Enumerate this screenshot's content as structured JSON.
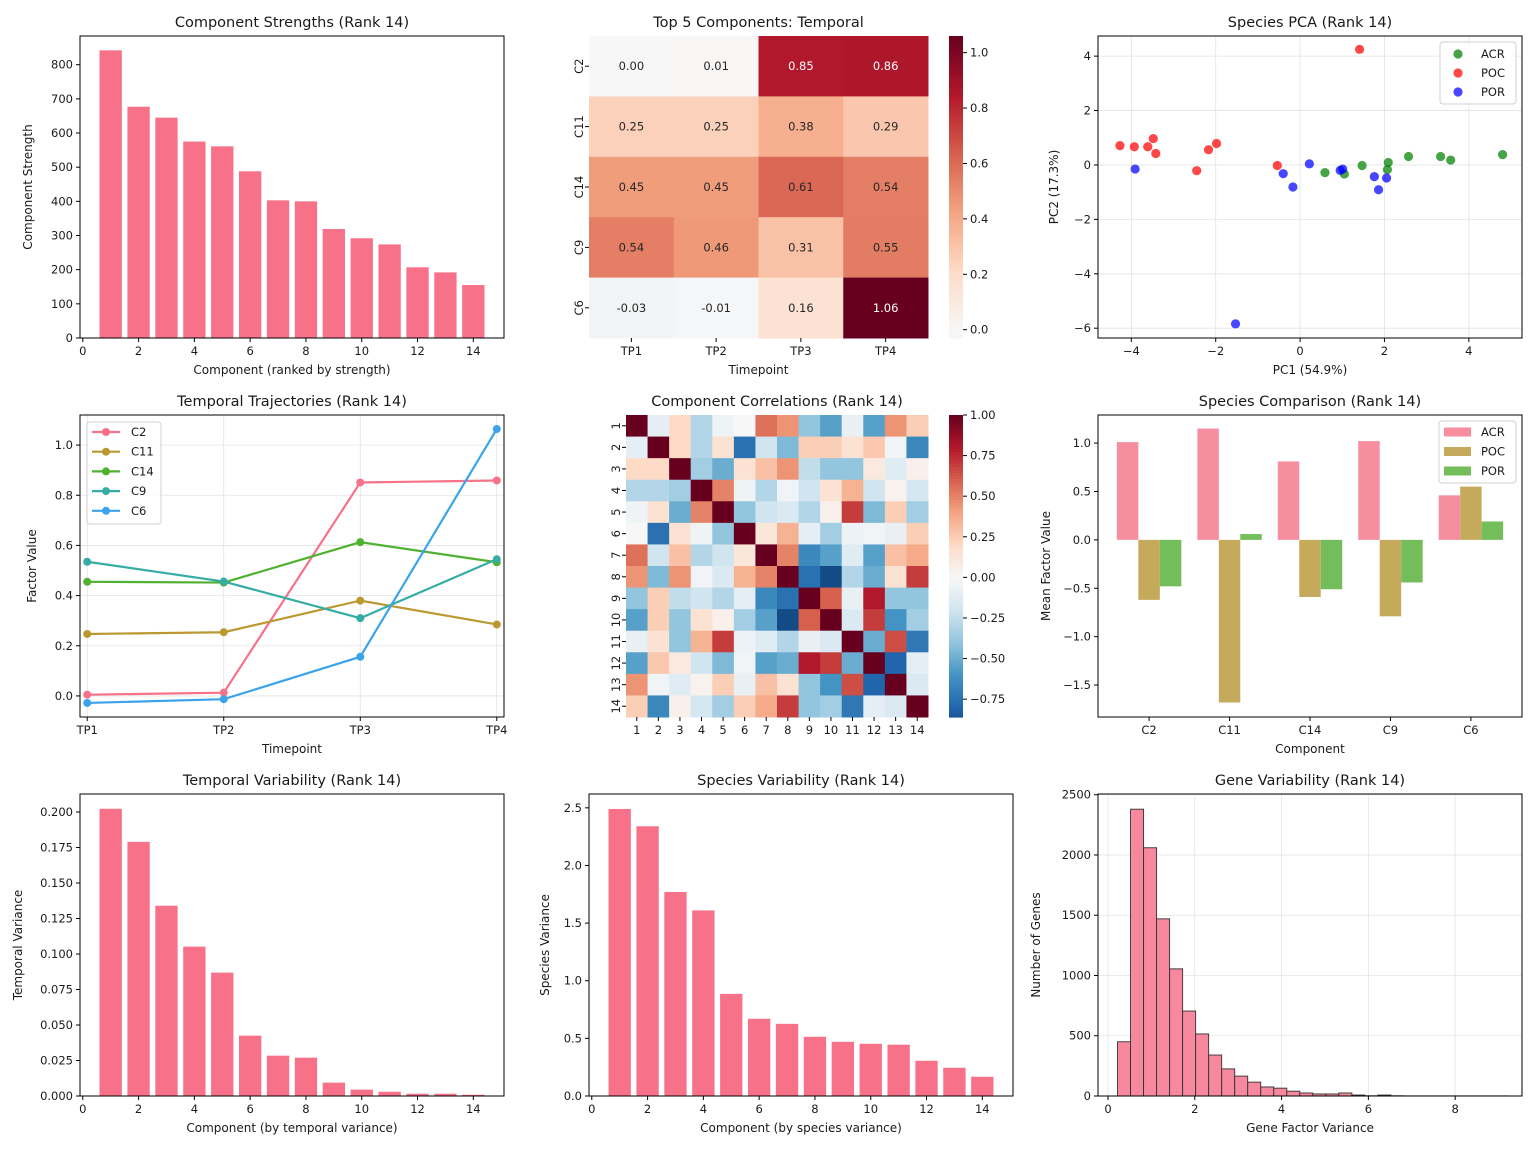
{
  "chart_data": [
    {
      "id": "strengths",
      "type": "bar",
      "title": "Component Strengths (Rank 14)",
      "xlabel": "Component (ranked by strength)",
      "ylabel": "Component Strength",
      "x": [
        1,
        2,
        3,
        4,
        5,
        6,
        7,
        8,
        9,
        10,
        11,
        12,
        13,
        14
      ],
      "values": [
        842,
        677,
        645,
        575,
        561,
        488,
        403,
        400,
        319,
        292,
        274,
        207,
        192,
        155
      ],
      "xlim": [
        -0.1,
        15.1
      ],
      "ylim": [
        0,
        884
      ],
      "xticks": [
        0,
        2,
        4,
        6,
        8,
        10,
        12,
        14
      ],
      "yticks": [
        0,
        100,
        200,
        300,
        400,
        500,
        600,
        700,
        800
      ],
      "color": "#f77189",
      "grid": false
    },
    {
      "id": "temporal-heatmap",
      "type": "heatmap",
      "title": "Top 5 Components: Temporal",
      "xlabel": "Timepoint",
      "ylabel": "",
      "columns": [
        "TP1",
        "TP2",
        "TP3",
        "TP4"
      ],
      "rows": [
        "C2",
        "C11",
        "C14",
        "C9",
        "C6"
      ],
      "values": [
        [
          0.0,
          0.01,
          0.85,
          0.86
        ],
        [
          0.25,
          0.25,
          0.38,
          0.29
        ],
        [
          0.45,
          0.45,
          0.61,
          0.54
        ],
        [
          0.54,
          0.46,
          0.31,
          0.55
        ],
        [
          -0.03,
          -0.01,
          0.16,
          1.06
        ]
      ],
      "value_labels": [
        [
          "0.00",
          "0.01",
          "0.85",
          "0.86"
        ],
        [
          "0.25",
          "0.25",
          "0.38",
          "0.29"
        ],
        [
          "0.45",
          "0.45",
          "0.61",
          "0.54"
        ],
        [
          "0.54",
          "0.46",
          "0.31",
          "0.55"
        ],
        [
          "-0.03",
          "-0.01",
          "0.16",
          "1.06"
        ]
      ],
      "colormap": "RdBu_r",
      "center": 0,
      "vmin": -0.03,
      "vmax": 1.06,
      "colorbar_ticks": [
        0.0,
        0.2,
        0.4,
        0.6,
        0.8,
        1.0
      ],
      "colorbar_tick_labels": [
        "0.0",
        "0.2",
        "0.4",
        "0.6",
        "0.8",
        "1.0"
      ]
    },
    {
      "id": "species-pca",
      "type": "scatter",
      "title": "Species PCA (Rank 14)",
      "xlabel": "PC1 (54.9%)",
      "ylabel": "PC2 (17.3%)",
      "xlim": [
        -4.79,
        5.26
      ],
      "ylim": [
        -6.36,
        4.74
      ],
      "xticks": [
        -4,
        -2,
        0,
        2,
        4
      ],
      "xtick_labels": [
        "−4",
        "−2",
        "0",
        "2",
        "4"
      ],
      "yticks": [
        -6,
        -4,
        -2,
        0,
        2,
        4
      ],
      "ytick_labels": [
        "−6",
        "−4",
        "−2",
        "0",
        "2",
        "4"
      ],
      "grid": true,
      "legend_position": "top-right",
      "series": [
        {
          "name": "ACR",
          "color": "#008000",
          "points": [
            [
              0.59,
              -0.28
            ],
            [
              1.05,
              -0.33
            ],
            [
              1.47,
              -0.02
            ],
            [
              2.07,
              -0.17
            ],
            [
              2.09,
              0.09
            ],
            [
              2.57,
              0.31
            ],
            [
              3.33,
              0.31
            ],
            [
              3.57,
              0.18
            ],
            [
              4.8,
              0.38
            ]
          ]
        },
        {
          "name": "POC",
          "color": "#ff0000",
          "points": [
            [
              -4.27,
              0.71
            ],
            [
              -3.93,
              0.67
            ],
            [
              -3.61,
              0.67
            ],
            [
              -3.48,
              0.97
            ],
            [
              -3.42,
              0.42
            ],
            [
              -2.45,
              -0.21
            ],
            [
              -2.17,
              0.56
            ],
            [
              -1.98,
              0.79
            ],
            [
              -0.54,
              -0.02
            ],
            [
              1.41,
              4.25
            ]
          ]
        },
        {
          "name": "POR",
          "color": "#0000ff",
          "points": [
            [
              -3.91,
              -0.15
            ],
            [
              -1.53,
              -5.84
            ],
            [
              -0.4,
              -0.32
            ],
            [
              -0.17,
              -0.81
            ],
            [
              0.22,
              0.04
            ],
            [
              0.95,
              -0.2
            ],
            [
              1.01,
              -0.15
            ],
            [
              1.76,
              -0.43
            ],
            [
              1.86,
              -0.91
            ],
            [
              2.05,
              -0.48
            ]
          ]
        }
      ]
    },
    {
      "id": "temporal-trajectories",
      "type": "line",
      "title": "Temporal Trajectories (Rank 14)",
      "xlabel": "Timepoint",
      "ylabel": "Factor Value",
      "categories": [
        "TP1",
        "TP2",
        "TP3",
        "TP4"
      ],
      "ylim": [
        -0.084,
        1.12
      ],
      "yticks": [
        0.0,
        0.2,
        0.4,
        0.6,
        0.8,
        1.0
      ],
      "ytick_labels": [
        "0.0",
        "0.2",
        "0.4",
        "0.6",
        "0.8",
        "1.0"
      ],
      "grid": true,
      "legend_position": "top-left",
      "series": [
        {
          "name": "C2",
          "color": "#f77189",
          "values": [
            0.005,
            0.013,
            0.851,
            0.859
          ]
        },
        {
          "name": "C11",
          "color": "#bb9832",
          "values": [
            0.247,
            0.254,
            0.38,
            0.285
          ]
        },
        {
          "name": "C14",
          "color": "#50b131",
          "values": [
            0.455,
            0.452,
            0.613,
            0.533
          ]
        },
        {
          "name": "C9",
          "color": "#36ada4",
          "values": [
            0.535,
            0.456,
            0.31,
            0.545
          ]
        },
        {
          "name": "C6",
          "color": "#3ba3ec",
          "values": [
            -0.028,
            -0.013,
            0.156,
            1.064
          ]
        }
      ]
    },
    {
      "id": "component-correlations",
      "type": "heatmap",
      "title": "Component Correlations (Rank 14)",
      "xlabel": "",
      "ylabel": "",
      "columns": [
        "1",
        "2",
        "3",
        "4",
        "5",
        "6",
        "7",
        "8",
        "9",
        "10",
        "11",
        "12",
        "13",
        "14"
      ],
      "rows": [
        "1",
        "2",
        "3",
        "4",
        "5",
        "6",
        "7",
        "8",
        "9",
        "10",
        "11",
        "12",
        "13",
        "14"
      ],
      "values": [
        [
          1,
          -0.1,
          0.2,
          -0.3,
          -0.05,
          0.0,
          0.55,
          0.45,
          -0.4,
          -0.55,
          -0.08,
          -0.55,
          0.45,
          0.25
        ],
        [
          -0.1,
          1,
          0.2,
          -0.3,
          0.15,
          -0.75,
          -0.2,
          -0.45,
          0.25,
          0.25,
          0.15,
          0.27,
          -0.03,
          -0.65
        ],
        [
          0.2,
          0.2,
          1,
          -0.35,
          -0.5,
          0.15,
          0.3,
          0.45,
          -0.25,
          -0.4,
          -0.4,
          0.1,
          -0.12,
          0.05
        ],
        [
          -0.3,
          -0.3,
          -0.35,
          1,
          0.5,
          -0.05,
          -0.3,
          -0.03,
          -0.2,
          0.15,
          0.35,
          -0.2,
          0.04,
          -0.18
        ],
        [
          -0.05,
          0.15,
          -0.5,
          0.5,
          1,
          -0.4,
          -0.2,
          -0.15,
          -0.3,
          0.05,
          0.7,
          -0.45,
          0.25,
          -0.35
        ],
        [
          0.0,
          -0.75,
          0.15,
          -0.05,
          -0.4,
          1,
          0.12,
          0.35,
          -0.1,
          -0.35,
          -0.06,
          -0.03,
          -0.08,
          0.25
        ],
        [
          0.55,
          -0.2,
          0.3,
          -0.3,
          -0.2,
          0.12,
          1,
          0.5,
          -0.65,
          -0.55,
          -0.12,
          -0.55,
          0.3,
          0.38
        ],
        [
          0.45,
          -0.45,
          0.45,
          -0.03,
          -0.15,
          0.35,
          0.5,
          1,
          -0.75,
          -0.9,
          -0.3,
          -0.5,
          0.15,
          0.7
        ],
        [
          -0.4,
          0.25,
          -0.25,
          -0.2,
          -0.3,
          -0.1,
          -0.65,
          -0.75,
          1,
          0.6,
          -0.08,
          0.8,
          -0.4,
          -0.4
        ],
        [
          -0.55,
          0.25,
          -0.4,
          0.15,
          0.05,
          -0.35,
          -0.55,
          -0.9,
          0.6,
          1,
          -0.15,
          0.7,
          -0.6,
          -0.35
        ],
        [
          -0.08,
          0.15,
          -0.4,
          0.35,
          0.7,
          -0.06,
          -0.12,
          -0.3,
          -0.08,
          -0.15,
          1,
          -0.5,
          0.65,
          -0.72
        ],
        [
          -0.55,
          0.27,
          0.1,
          -0.2,
          -0.45,
          -0.03,
          -0.55,
          -0.5,
          0.8,
          0.7,
          -0.5,
          1,
          -0.8,
          -0.1
        ],
        [
          0.45,
          -0.03,
          -0.12,
          0.04,
          0.25,
          -0.08,
          0.3,
          0.15,
          -0.4,
          -0.6,
          0.65,
          -0.8,
          1,
          -0.15
        ],
        [
          0.25,
          -0.65,
          0.05,
          -0.18,
          -0.35,
          0.25,
          0.38,
          0.7,
          -0.4,
          -0.35,
          -0.72,
          -0.1,
          -0.15,
          1
        ]
      ],
      "colormap": "RdBu_r",
      "center": 0,
      "vmin": -0.86,
      "vmax": 1.0,
      "colorbar_ticks": [
        -0.75,
        -0.5,
        -0.25,
        0.0,
        0.25,
        0.5,
        0.75,
        1.0
      ],
      "colorbar_tick_labels": [
        "−0.75",
        "−0.50",
        "−0.25",
        "0.00",
        "0.25",
        "0.50",
        "0.75",
        "1.00"
      ]
    },
    {
      "id": "species-comparison",
      "type": "bar",
      "title": "Species Comparison (Rank 14)",
      "xlabel": "Component",
      "ylabel": "Mean Factor Value",
      "categories": [
        "C2",
        "C11",
        "C14",
        "C9",
        "C6"
      ],
      "ylim": [
        -1.83,
        1.29
      ],
      "yticks": [
        -1.5,
        -1.0,
        -0.5,
        0.0,
        0.5,
        1.0
      ],
      "ytick_labels": [
        "−1.5",
        "−1.0",
        "−0.5",
        "0.0",
        "0.5",
        "1.0"
      ],
      "legend_position": "top-right",
      "series": [
        {
          "name": "ACR",
          "color": "#f68ea0",
          "values": [
            1.01,
            1.15,
            0.81,
            1.02,
            0.46
          ]
        },
        {
          "name": "POC",
          "color": "#c6aa5c",
          "values": [
            -0.62,
            -1.68,
            -0.59,
            -0.79,
            0.55
          ]
        },
        {
          "name": "POR",
          "color": "#73be5a",
          "values": [
            -0.48,
            0.06,
            -0.51,
            -0.44,
            0.19
          ]
        }
      ]
    },
    {
      "id": "temporal-variability",
      "type": "bar",
      "title": "Temporal Variability (Rank 14)",
      "xlabel": "Component (by temporal variance)",
      "ylabel": "Temporal Variance",
      "x": [
        1,
        2,
        3,
        4,
        5,
        6,
        7,
        8,
        9,
        10,
        11,
        12,
        13,
        14
      ],
      "values": [
        0.2023,
        0.179,
        0.134,
        0.1052,
        0.0869,
        0.0425,
        0.0284,
        0.027,
        0.0094,
        0.0045,
        0.003,
        0.0016,
        0.0016,
        0.0009
      ],
      "xlim": [
        -0.1,
        15.1
      ],
      "ylim": [
        0,
        0.2127
      ],
      "xticks": [
        0,
        2,
        4,
        6,
        8,
        10,
        12,
        14
      ],
      "yticks": [
        0.0,
        0.025,
        0.05,
        0.075,
        0.1,
        0.125,
        0.15,
        0.175,
        0.2
      ],
      "ytick_labels": [
        "0.000",
        "0.025",
        "0.050",
        "0.075",
        "0.100",
        "0.125",
        "0.150",
        "0.175",
        "0.200"
      ],
      "color": "#f77189"
    },
    {
      "id": "species-variability",
      "type": "bar",
      "title": "Species Variability (Rank 14)",
      "xlabel": "Component (by species variance)",
      "ylabel": "Species Variance",
      "x": [
        1,
        2,
        3,
        4,
        5,
        6,
        7,
        8,
        9,
        10,
        11,
        12,
        13,
        14
      ],
      "values": [
        2.49,
        2.34,
        1.77,
        1.61,
        0.886,
        0.67,
        0.626,
        0.514,
        0.47,
        0.453,
        0.445,
        0.306,
        0.245,
        0.167
      ],
      "xlim": [
        -0.1,
        15.1
      ],
      "ylim": [
        0,
        2.62
      ],
      "xticks": [
        0,
        2,
        4,
        6,
        8,
        10,
        12,
        14
      ],
      "yticks": [
        0.0,
        0.5,
        1.0,
        1.5,
        2.0,
        2.5
      ],
      "ytick_labels": [
        "0.0",
        "0.5",
        "1.0",
        "1.5",
        "2.0",
        "2.5"
      ],
      "color": "#f77189"
    },
    {
      "id": "gene-variability",
      "type": "bar",
      "subtype": "histogram",
      "title": "Gene Variability (Rank 14)",
      "xlabel": "Gene Factor Variance",
      "ylabel": "Number of Genes",
      "bin_start": 0.22,
      "bin_width": 0.3,
      "counts": [
        450,
        2380,
        2060,
        1470,
        1055,
        705,
        515,
        340,
        225,
        165,
        115,
        75,
        65,
        40,
        25,
        17,
        17,
        25,
        8,
        2,
        8,
        2,
        1,
        1,
        1,
        1,
        1,
        1,
        1,
        1
      ],
      "xlim": [
        -0.23,
        9.54
      ],
      "ylim": [
        0,
        2506
      ],
      "xticks": [
        0,
        2,
        4,
        6,
        8
      ],
      "yticks": [
        0,
        500,
        1000,
        1500,
        2000,
        2500
      ],
      "grid": true,
      "color": "#f7889e",
      "edge_color": "#333333"
    }
  ]
}
